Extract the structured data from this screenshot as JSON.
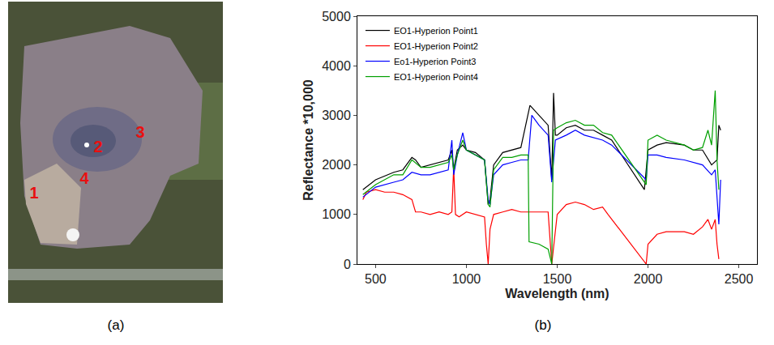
{
  "figure": {
    "panel_labels": [
      "(a)",
      "(b)"
    ],
    "map_point_labels": [
      "1",
      "2",
      "3",
      "4"
    ]
  },
  "chart_data": {
    "type": "line",
    "x_label": "Wavelength (nm)",
    "y_label": "Reflectance *10,000",
    "xlim": [
      400,
      2600
    ],
    "xticks": [
      500,
      1000,
      1500,
      2000,
      2500
    ],
    "ylim": [
      0,
      5000
    ],
    "yticks": [
      0,
      1000,
      2000,
      3000,
      4000,
      5000
    ],
    "grid": false,
    "legend": "top-left",
    "series": [
      {
        "name": "EO1-Hyperion Point1",
        "color": "#000000",
        "x": [
          430,
          500,
          600,
          650,
          700,
          720,
          750,
          800,
          850,
          900,
          920,
          930,
          950,
          980,
          1000,
          1050,
          1100,
          1120,
          1130,
          1150,
          1200,
          1250,
          1300,
          1350,
          1400,
          1450,
          1470,
          1480,
          1490,
          1500,
          1550,
          1600,
          1650,
          1700,
          1750,
          1800,
          1980,
          2000,
          2050,
          2100,
          2200,
          2250,
          2300,
          2350,
          2380,
          2390,
          2400
        ],
        "values": [
          1500,
          1700,
          1850,
          1900,
          2150,
          2100,
          1950,
          2000,
          2050,
          2100,
          2300,
          1900,
          2300,
          2400,
          2300,
          2250,
          2100,
          1200,
          1300,
          2000,
          2250,
          2300,
          2350,
          3200,
          3000,
          2800,
          1700,
          3450,
          2600,
          2600,
          2750,
          2800,
          2700,
          2700,
          2600,
          2500,
          1500,
          2300,
          2400,
          2450,
          2400,
          2300,
          2300,
          2000,
          2100,
          2800,
          2700
        ]
      },
      {
        "name": "EO1-Hyperion Point2",
        "color": "#ff0000",
        "x": [
          430,
          450,
          500,
          550,
          600,
          650,
          700,
          720,
          750,
          800,
          850,
          900,
          920,
          930,
          940,
          960,
          1000,
          1050,
          1100,
          1110,
          1120,
          1130,
          1150,
          1200,
          1250,
          1300,
          1340,
          1400,
          1450,
          1470,
          1500,
          1550,
          1600,
          1650,
          1700,
          1750,
          1780,
          1990,
          2000,
          2050,
          2100,
          2200,
          2250,
          2300,
          2330,
          2350,
          2370,
          2380,
          2390
        ],
        "values": [
          1300,
          1450,
          1500,
          1450,
          1450,
          1400,
          1300,
          1050,
          1050,
          1000,
          1050,
          1000,
          1050,
          1950,
          1000,
          950,
          1050,
          1000,
          950,
          400,
          0,
          700,
          1000,
          1050,
          1100,
          1050,
          1050,
          1050,
          1050,
          0,
          1000,
          1200,
          1250,
          1200,
          1100,
          1150,
          1000,
          0,
          400,
          600,
          650,
          650,
          600,
          750,
          900,
          700,
          900,
          400,
          100
        ]
      },
      {
        "name": "Eo1-Hyperion Point3",
        "color": "#0000ff",
        "x": [
          430,
          500,
          600,
          650,
          700,
          750,
          800,
          850,
          900,
          920,
          930,
          950,
          980,
          1000,
          1050,
          1100,
          1120,
          1130,
          1150,
          1200,
          1250,
          1300,
          1340,
          1360,
          1400,
          1450,
          1470,
          1490,
          1550,
          1600,
          1650,
          1700,
          1750,
          1800,
          1990,
          2000,
          2050,
          2100,
          2200,
          2300,
          2350,
          2370,
          2380,
          2390,
          2400
        ],
        "values": [
          1350,
          1550,
          1650,
          1700,
          1850,
          1800,
          1800,
          1850,
          1900,
          2500,
          1800,
          2200,
          2650,
          2300,
          2200,
          2100,
          1300,
          1200,
          1800,
          2000,
          2050,
          2100,
          2100,
          3000,
          2800,
          2600,
          1650,
          2500,
          2600,
          2700,
          2600,
          2550,
          2500,
          2400,
          1700,
          2200,
          2200,
          2150,
          2100,
          2000,
          1800,
          1900,
          1300,
          800,
          1700
        ]
      },
      {
        "name": "EO1-Hyperion Point4",
        "color": "#00a000",
        "x": [
          430,
          500,
          600,
          650,
          700,
          750,
          800,
          850,
          900,
          920,
          930,
          950,
          980,
          1000,
          1050,
          1100,
          1120,
          1130,
          1150,
          1200,
          1250,
          1300,
          1340,
          1345,
          1400,
          1450,
          1470,
          1480,
          1500,
          1550,
          1600,
          1650,
          1700,
          1750,
          1800,
          1990,
          2000,
          2050,
          2100,
          2200,
          2250,
          2300,
          2330,
          2350,
          2370,
          2380,
          2390
        ],
        "values": [
          1400,
          1600,
          1800,
          1800,
          2100,
          1950,
          1950,
          2000,
          2050,
          2200,
          1900,
          2200,
          2500,
          2300,
          2200,
          2100,
          1200,
          1150,
          1900,
          2150,
          2150,
          2200,
          2200,
          450,
          400,
          300,
          0,
          2700,
          2750,
          2850,
          2900,
          2800,
          2800,
          2650,
          2600,
          1600,
          2500,
          2600,
          2500,
          2400,
          2300,
          2350,
          2700,
          2400,
          3500,
          2100,
          1500
        ]
      }
    ]
  }
}
